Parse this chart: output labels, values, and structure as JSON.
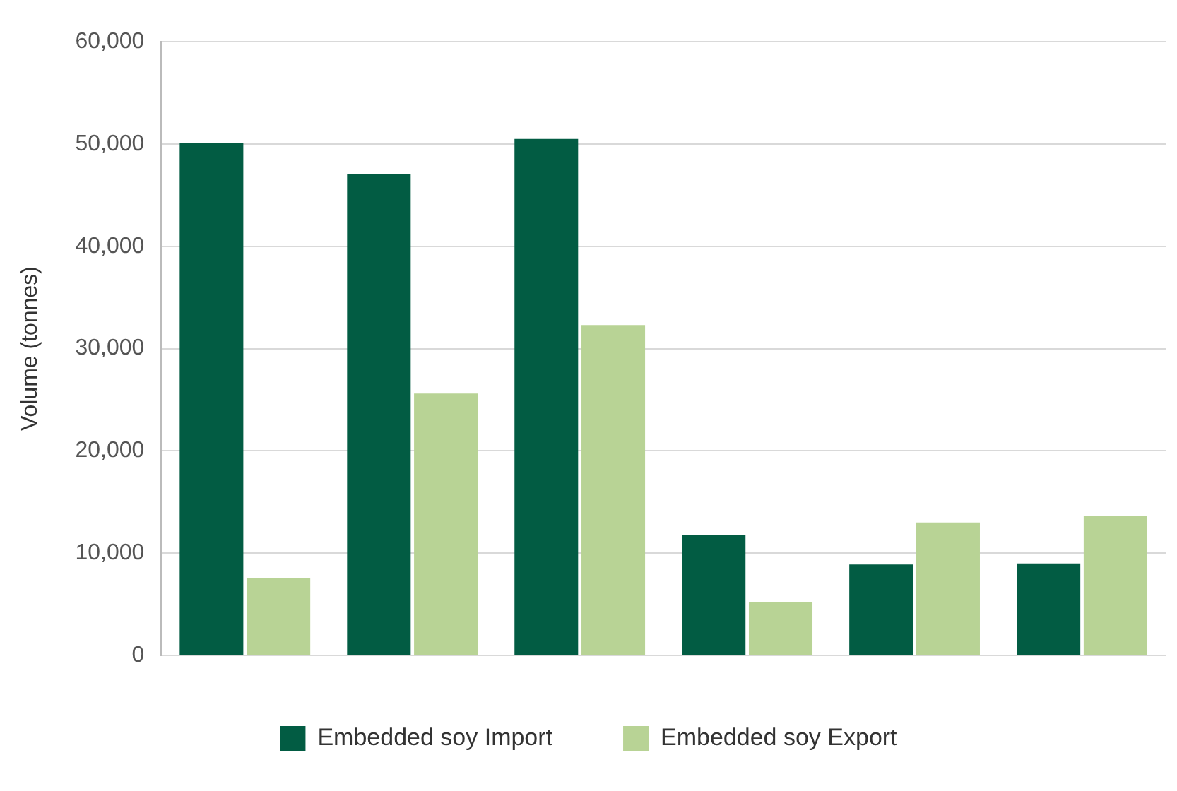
{
  "chart_data": {
    "type": "bar",
    "ylabel": "Volume (tonnes)",
    "categories": [
      null,
      null,
      null,
      null,
      null,
      null
    ],
    "series": [
      {
        "name": "Embedded soy Import",
        "color": "#025c43",
        "values": [
          50100,
          47100,
          50500,
          11800,
          8900,
          9000
        ]
      },
      {
        "name": "Embedded soy Export",
        "color": "#b8d395",
        "values": [
          7600,
          25600,
          32300,
          5200,
          13000,
          13600
        ]
      }
    ],
    "ylim": [
      0,
      60000
    ],
    "yticks": [
      {
        "value": 0,
        "label": "0"
      },
      {
        "value": 10000,
        "label": "10,000"
      },
      {
        "value": 20000,
        "label": "20,000"
      },
      {
        "value": 30000,
        "label": "30,000"
      },
      {
        "value": 40000,
        "label": "40,000"
      },
      {
        "value": 50000,
        "label": "50,000"
      },
      {
        "value": 60000,
        "label": "60,000"
      }
    ],
    "grid": "y",
    "legend": "bottom"
  }
}
